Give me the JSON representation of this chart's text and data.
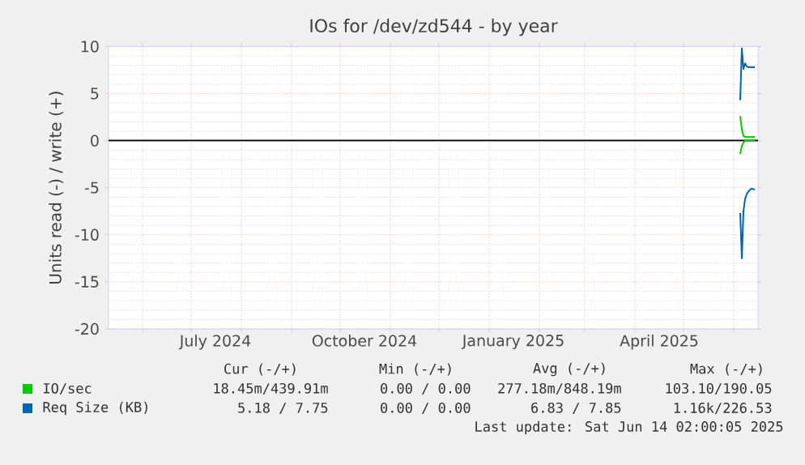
{
  "chart_data": {
    "type": "line",
    "title": "IOs for /dev/zd544 - by year",
    "ylabel": "Units read (-) / write (+)",
    "xlim": [
      "2024-05-11",
      "2025-06-16"
    ],
    "ylim": [
      -20,
      10
    ],
    "yticks": [
      -20,
      -15,
      -10,
      -5,
      0,
      5,
      10
    ],
    "xticks": [
      {
        "value": "2024-06-01",
        "label": null
      },
      {
        "value": "2024-07-01",
        "label": null
      },
      {
        "value": "2024-07-16",
        "label": "July 2024"
      },
      {
        "value": "2024-08-01",
        "label": null
      },
      {
        "value": "2024-09-01",
        "label": null
      },
      {
        "value": "2024-10-01",
        "label": null
      },
      {
        "value": "2024-10-16",
        "label": "October 2024"
      },
      {
        "value": "2024-11-01",
        "label": null
      },
      {
        "value": "2024-12-01",
        "label": null
      },
      {
        "value": "2025-01-01",
        "label": null
      },
      {
        "value": "2025-01-16",
        "label": "January 2025"
      },
      {
        "value": "2025-02-01",
        "label": null
      },
      {
        "value": "2025-03-01",
        "label": null
      },
      {
        "value": "2025-04-01",
        "label": null
      },
      {
        "value": "2025-04-16",
        "label": "April 2025"
      },
      {
        "value": "2025-05-01",
        "label": null
      },
      {
        "value": "2025-06-01",
        "label": null
      }
    ],
    "grid": true,
    "legend": "bottom left",
    "ref_lines": [
      {
        "axis": "y",
        "value": 0,
        "color": "#000000"
      }
    ],
    "series": [
      {
        "name": "IO/sec",
        "color": "#00cc00",
        "x": [
          "2025-06-05",
          "2025-06-06",
          "2025-06-07",
          "2025-06-08",
          "2025-06-10",
          "2025-06-12",
          "2025-06-14"
        ],
        "values": [
          2.6,
          1.2,
          0.5,
          0.4,
          0.4,
          0.4,
          0.4
        ]
      },
      {
        "color": "#00cc00",
        "x": [
          "2025-06-05",
          "2025-06-06",
          "2025-06-07",
          "2025-06-08",
          "2025-06-10",
          "2025-06-12",
          "2025-06-14"
        ],
        "values": [
          -1.4,
          -0.6,
          -0.2,
          0,
          0,
          0,
          0
        ]
      },
      {
        "name": "Req Size (KB)",
        "color": "#0066b3",
        "x": [
          "2025-06-05",
          "2025-06-06",
          "2025-06-07",
          "2025-06-08",
          "2025-06-09",
          "2025-06-10",
          "2025-06-12",
          "2025-06-14"
        ],
        "values": [
          4.3,
          9.8,
          7.6,
          8.2,
          7.9,
          7.8,
          7.8,
          7.8
        ]
      },
      {
        "color": "#0066b3",
        "x": [
          "2025-06-05",
          "2025-06-06",
          "2025-06-07",
          "2025-06-08",
          "2025-06-09",
          "2025-06-10",
          "2025-06-12",
          "2025-06-14"
        ],
        "values": [
          -7.7,
          -12.5,
          -7.5,
          -6.2,
          -5.7,
          -5.4,
          -5.1,
          -5.2
        ]
      }
    ],
    "annotations": [
      "Cur (-/+)",
      "Min (-/+)",
      "Avg (-/+)",
      "Max (-/+)",
      "18.45m/439.91m",
      "0.00 / 0.00",
      "277.18m/848.19m",
      "103.10/190.05",
      "5.18 / 7.75",
      "0.00 / 0.00",
      "6.83 / 7.85",
      "1.16k/226.53",
      "Last update: Sat Jun 14 02:00:05 2025"
    ]
  }
}
